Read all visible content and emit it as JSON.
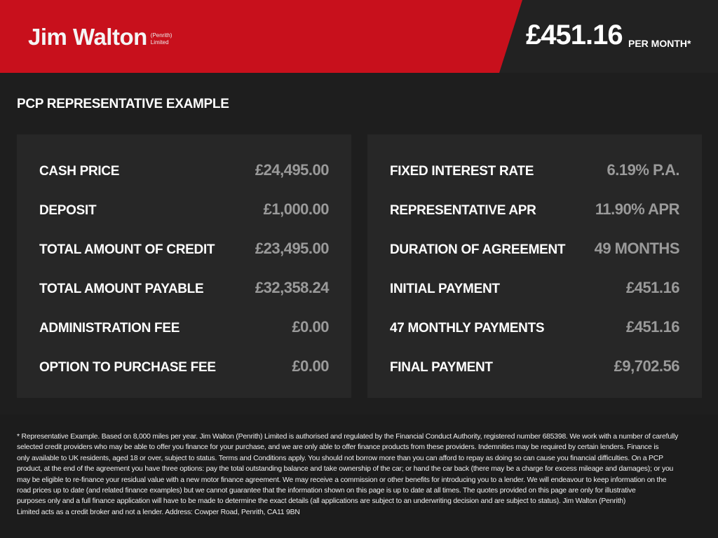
{
  "header": {
    "logo_main": "Jim Walton",
    "logo_sub1": "(Penrith)",
    "logo_sub2": "Limited",
    "price": "£451.16",
    "per_month": "PER MONTH*",
    "colors": {
      "brand_red": "#c8101c",
      "dark": "#222222"
    }
  },
  "title": "PCP REPRESENTATIVE EXAMPLE",
  "left": [
    {
      "label": "CASH PRICE",
      "value": "£24,495.00"
    },
    {
      "label": "DEPOSIT",
      "value": "£1,000.00"
    },
    {
      "label": "TOTAL AMOUNT OF CREDIT",
      "value": "£23,495.00"
    },
    {
      "label": "TOTAL AMOUNT PAYABLE",
      "value": "£32,358.24"
    },
    {
      "label": "ADMINISTRATION FEE",
      "value": "£0.00"
    },
    {
      "label": "OPTION TO PURCHASE FEE",
      "value": "£0.00"
    }
  ],
  "right": [
    {
      "label": "FIXED INTEREST RATE",
      "value": "6.19% P.A."
    },
    {
      "label": "REPRESENTATIVE APR",
      "value": "11.90% APR"
    },
    {
      "label": "DURATION OF AGREEMENT",
      "value": "49 MONTHS"
    },
    {
      "label": "INITIAL PAYMENT",
      "value": "£451.16"
    },
    {
      "label": "47 MONTHLY PAYMENTS",
      "value": "£451.16"
    },
    {
      "label": "FINAL PAYMENT",
      "value": "£9,702.56"
    }
  ],
  "footer": [
    "* Representative Example. Based on 8,000 miles per year. Jim Walton (Penrith) Limited is authorised and regulated by the Financial Conduct Authority, registered number 685398. We work with a number of carefully",
    "selected credit providers who may be able to offer you finance for your purchase, and we are only able to offer finance products from these providers. Indemnities may be required by certain lenders. Finance is",
    "only available to UK residents, aged 18 or over, subject to status. Terms and Conditions apply. You should not borrow more than you can afford to repay as doing so can cause you financial difficulties. On a PCP",
    "product, at the end of the agreement you have three options: pay the total outstanding balance and take ownership of the car; or hand the car back (there may be a charge for excess mileage and damages); or you",
    "may be eligible to re-finance your residual value with a new motor finance agreement. We may receive a commission or other benefits for introducing you to a lender. We will endeavour to keep information on the",
    "road prices up to date (and related finance examples) but we cannot guarantee that the information shown on this page is up to date at all times. The quotes provided on this page are only for illustrative",
    "purposes only and a full finance application will have to be made to determine the exact details (all applications are subject to an underwriting decision and are subject to status). Jim Walton (Penrith)",
    "Limited acts as a credit broker and not a lender. Address: Cowper Road, Penrith, CA11 9BN"
  ]
}
